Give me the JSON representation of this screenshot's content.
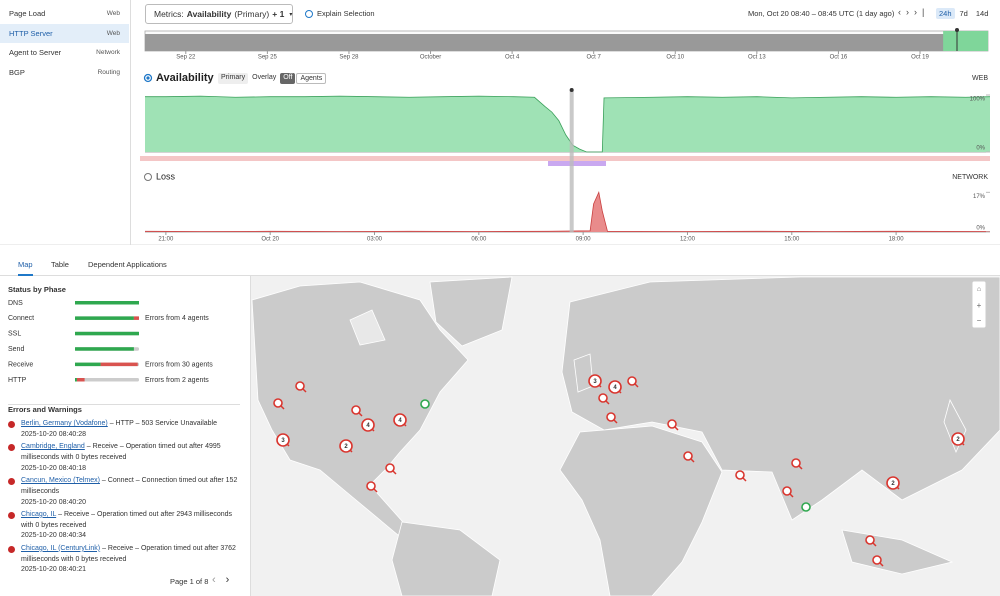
{
  "sidebar": {
    "items": [
      {
        "label": "Page Load",
        "tag": "Web"
      },
      {
        "label": "HTTP Server",
        "tag": "Web"
      },
      {
        "label": "Agent to Server",
        "tag": "Network"
      },
      {
        "label": "BGP",
        "tag": "Routing"
      }
    ],
    "selected_index": 1
  },
  "toolbar": {
    "metrics_label": "Metrics:",
    "metric": "Availability",
    "metric_variant": "(Primary)",
    "metric_extra": "+ 1",
    "explain": "Explain Selection",
    "time_range": "Mon, Oct 20 08:40 – 08:45 UTC (1 day ago)",
    "ranges": [
      "24h",
      "7d",
      "14d"
    ],
    "active_range": 0
  },
  "overview": {
    "xlim": [
      263.5,
      294.5
    ],
    "window": [
      292.85,
      294.5
    ],
    "xticks": [
      {
        "value": 265,
        "label": "Sep 22"
      },
      {
        "value": 268,
        "label": "Sep 25"
      },
      {
        "value": 271,
        "label": "Sep 28"
      },
      {
        "value": 274,
        "label": "October"
      },
      {
        "value": 277,
        "label": "Oct 4"
      },
      {
        "value": 280,
        "label": "Oct 7"
      },
      {
        "value": 283,
        "label": "Oct 10"
      },
      {
        "value": 286,
        "label": "Oct 13"
      },
      {
        "value": 289,
        "label": "Oct 16"
      },
      {
        "value": 292,
        "label": "Oct 19"
      }
    ]
  },
  "availability": {
    "title": "Availability",
    "modes": [
      "Primary",
      "Overlay",
      "Off",
      "Agents"
    ],
    "active_mode": 2,
    "tag": "WEB",
    "color": "#9fe2b5",
    "line_color": "#3aa05a",
    "xlim": [
      20.4,
      44.7
    ],
    "ylim": [
      0,
      100
    ],
    "yticks": [
      {
        "value": 100,
        "label": "100%"
      },
      {
        "value": 0,
        "label": "0%"
      }
    ],
    "selection": 32.67,
    "x": [
      20.4,
      21,
      22,
      23,
      24,
      25,
      26,
      27,
      28,
      29,
      30,
      31,
      31.6,
      31.9,
      32.1,
      32.3,
      32.5,
      32.7,
      32.9,
      33.1,
      33.3,
      33.55,
      33.6,
      35,
      36,
      37,
      38,
      39,
      40,
      41,
      42,
      43,
      44,
      44.7
    ],
    "values": [
      97,
      97,
      98,
      96,
      97,
      97,
      98,
      97,
      96,
      97,
      98,
      97,
      96,
      80,
      70,
      55,
      30,
      12,
      5,
      0,
      0,
      0,
      95,
      96,
      97,
      96,
      97,
      95,
      96,
      97,
      96,
      97,
      96,
      97
    ]
  },
  "loss": {
    "title": "Loss",
    "tag": "NETWORK",
    "color": "#e98b8b",
    "line_color": "#c94040",
    "ylim": [
      0,
      18
    ],
    "yticks": [
      {
        "value": 17,
        "label": "17%"
      },
      {
        "value": 0,
        "label": "0%"
      }
    ],
    "x": [
      20.4,
      22,
      24,
      26,
      28,
      30,
      32,
      33.2,
      33.3,
      33.45,
      33.55,
      33.7,
      36,
      38,
      40,
      42,
      44.7
    ],
    "values": [
      0.3,
      0.2,
      0.3,
      0.2,
      0.3,
      0.2,
      0.3,
      0.5,
      12,
      17,
      9,
      0.3,
      0.2,
      0.3,
      0.2,
      0.3,
      0.2
    ]
  },
  "time_axis": {
    "xticks": [
      {
        "value": 21,
        "label": "21:00"
      },
      {
        "value": 24,
        "label": "Oct 20"
      },
      {
        "value": 27,
        "label": "03:00"
      },
      {
        "value": 30,
        "label": "06:00"
      },
      {
        "value": 33,
        "label": "09:00"
      },
      {
        "value": 36,
        "label": "12:00"
      },
      {
        "value": 39,
        "label": "15:00"
      },
      {
        "value": 42,
        "label": "18:00"
      }
    ]
  },
  "tabs": {
    "items": [
      "Map",
      "Table",
      "Dependent Applications"
    ],
    "active": 0
  },
  "status": {
    "title": "Status by Phase",
    "phases": [
      {
        "name": "DNS",
        "success": 100,
        "error": 0
      },
      {
        "name": "Connect",
        "success": 92,
        "error": 8,
        "note": "Errors from 4 agents"
      },
      {
        "name": "SSL",
        "success": 100,
        "error": 0
      },
      {
        "name": "Send",
        "success": 92,
        "error": 0
      },
      {
        "name": "Receive",
        "success": 40,
        "error": 58,
        "note": "Errors from 30 agents"
      },
      {
        "name": "HTTP",
        "success": 3,
        "error": 12,
        "note": "Errors from 2 agents"
      }
    ]
  },
  "errors": {
    "title": "Errors and Warnings",
    "pagination": "Page 1 of 8",
    "items": [
      {
        "location": "Berlin, Germany (Vodafone)",
        "message": "– HTTP – 503 Service Unavailable",
        "time": "2025-10-20 08:40:28"
      },
      {
        "location": "Cambridge, England",
        "message": "– Receive – Operation timed out after 4995 milliseconds with 0 bytes received",
        "time": "2025-10-20 08:40:18"
      },
      {
        "location": "Cancun, Mexico (Telmex)",
        "message": "– Connect – Connection timed out after 152 milliseconds",
        "time": "2025-10-20 08:40:20"
      },
      {
        "location": "Chicago, IL",
        "message": "– Receive – Operation timed out after 2943 milliseconds with 0 bytes received",
        "time": "2025-10-20 08:40:34"
      },
      {
        "location": "Chicago, IL (CenturyLink)",
        "message": "– Receive – Operation timed out after 3762 milliseconds with 0 bytes received",
        "time": "2025-10-20 08:40:21"
      }
    ]
  },
  "map": {
    "markers": [
      {
        "status": "error",
        "count": null
      },
      {
        "status": "error",
        "count": null
      },
      {
        "status": "error",
        "count": 3
      },
      {
        "status": "error",
        "count": 2
      },
      {
        "status": "error",
        "count": null
      },
      {
        "status": "error",
        "count": 4
      },
      {
        "status": "error",
        "count": 4
      },
      {
        "status": "ok",
        "count": null
      },
      {
        "status": "error",
        "count": null
      },
      {
        "status": "error",
        "count": null
      },
      {
        "status": "error",
        "count": 3
      },
      {
        "status": "error",
        "count": 4
      },
      {
        "status": "error",
        "count": null
      },
      {
        "status": "error",
        "count": null
      },
      {
        "status": "error",
        "count": null
      },
      {
        "status": "error",
        "count": null
      },
      {
        "status": "error",
        "count": null
      },
      {
        "status": "error",
        "count": null
      },
      {
        "status": "error",
        "count": null
      },
      {
        "status": "error",
        "count": null
      },
      {
        "status": "ok",
        "count": null
      },
      {
        "status": "error",
        "count": 2
      },
      {
        "status": "error",
        "count": 2
      },
      {
        "status": "error",
        "count": null
      },
      {
        "status": "error",
        "count": null
      }
    ]
  }
}
